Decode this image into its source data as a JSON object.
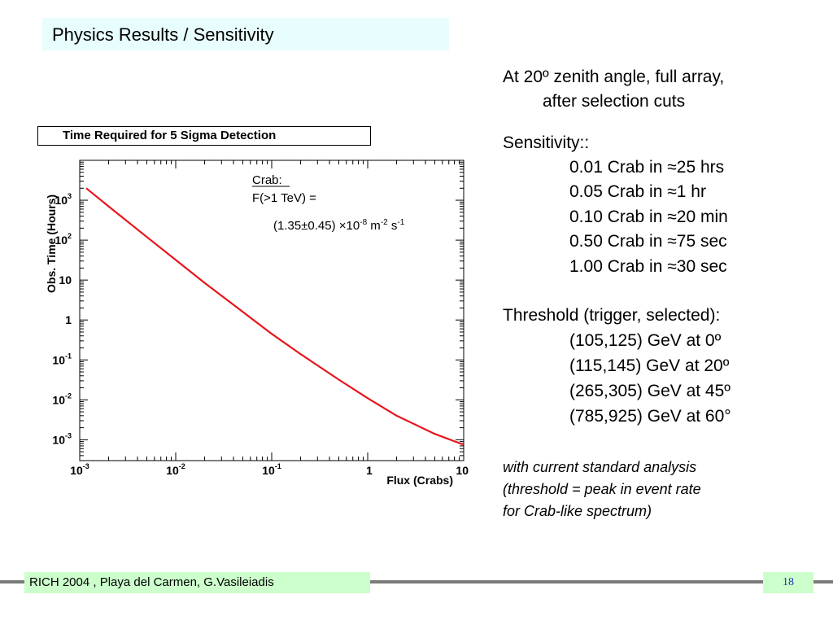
{
  "slide": {
    "title": "Physics Results / Sensitivity",
    "footer": "RICH 2004 , Playa del Carmen, G.Vasileiadis",
    "page_number": "18"
  },
  "right_panel": {
    "conditions_line1": "At 20º zenith angle, full array,",
    "conditions_line2": "after selection cuts",
    "sensitivity_heading": "Sensitivity::",
    "sensitivity_items": [
      "0.01  Crab in ≈25 hrs",
      "0.05  Crab in ≈1 hr",
      "0.10  Crab in ≈20 min",
      "0.50  Crab in ≈75 sec",
      "1.00  Crab in ≈30 sec"
    ],
    "threshold_heading": "Threshold (trigger, selected):",
    "threshold_items": [
      "(105,125) GeV at 0º",
      "(115,145) GeV at 20º",
      "(265,305) GeV at 45º",
      "(785,925) GeV at 60°"
    ],
    "note_lines": [
      "with current standard analysis",
      "(threshold = peak in event rate",
      "for Crab-like spectrum)"
    ]
  },
  "chart_data": {
    "type": "line",
    "title": "Time Required for 5 Sigma Detection",
    "xlabel": "Flux (Crabs)",
    "ylabel": "Obs. Time (Hours)",
    "xscale": "log",
    "yscale": "log",
    "xlim": [
      0.001,
      10
    ],
    "ylim": [
      0.0003,
      10000
    ],
    "x_ticks": [
      {
        "value": 0.001,
        "base": "10",
        "exp": "-3"
      },
      {
        "value": 0.01,
        "base": "10",
        "exp": "-2"
      },
      {
        "value": 0.1,
        "base": "10",
        "exp": "-1"
      },
      {
        "value": 1,
        "base": "1",
        "exp": ""
      },
      {
        "value": 10,
        "base": "10",
        "exp": ""
      }
    ],
    "y_ticks": [
      {
        "value": 0.001,
        "base": "10",
        "exp": "-3"
      },
      {
        "value": 0.01,
        "base": "10",
        "exp": "-2"
      },
      {
        "value": 0.1,
        "base": "10",
        "exp": "-1"
      },
      {
        "value": 1,
        "base": "1",
        "exp": ""
      },
      {
        "value": 10,
        "base": "10",
        "exp": ""
      },
      {
        "value": 100,
        "base": "10",
        "exp": "2"
      },
      {
        "value": 1000,
        "base": "10",
        "exp": "3"
      }
    ],
    "grid": false,
    "line_color": "#e8141c",
    "series": [
      {
        "x": [
          0.00117,
          0.002,
          0.005,
          0.01,
          0.02,
          0.05,
          0.1,
          0.2,
          0.5,
          1,
          2,
          5,
          10
        ],
        "y": [
          2000,
          700,
          120,
          32,
          8.5,
          1.6,
          0.45,
          0.14,
          0.032,
          0.011,
          0.004,
          0.0014,
          0.00075
        ]
      }
    ],
    "annotation": {
      "line1": "Crab:",
      "line2": "F(>1 TeV) =",
      "line3_main": "(1.35±0.45) ×10",
      "exp1": "-8",
      "unit1": " m",
      "exp2": "-2",
      "unit2": " s",
      "exp3": "-1"
    }
  }
}
